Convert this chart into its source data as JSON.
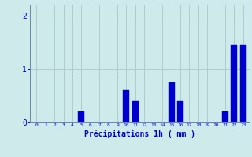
{
  "hours": [
    0,
    1,
    2,
    3,
    4,
    5,
    6,
    7,
    8,
    9,
    10,
    11,
    12,
    13,
    14,
    15,
    16,
    17,
    18,
    19,
    20,
    21,
    22,
    23
  ],
  "values": [
    0,
    0,
    0,
    0,
    0,
    0.2,
    0,
    0,
    0,
    0,
    0.6,
    0.4,
    0,
    0,
    0,
    0.75,
    0.4,
    0,
    0,
    0,
    0,
    0.2,
    1.45,
    1.45
  ],
  "bar_color": "#0000cc",
  "bar_edge_color": "#0000cc",
  "background_color": "#ceeaea",
  "grid_color": "#aac8c8",
  "axis_color": "#6688aa",
  "tick_color": "#0000cc",
  "xlabel": "Précipitations 1h ( mm )",
  "xlabel_color": "#0000cc",
  "xlabel_fontsize": 7,
  "ylim": [
    0,
    2.2
  ],
  "yticks": [
    0,
    1,
    2
  ],
  "bar_width": 0.7
}
